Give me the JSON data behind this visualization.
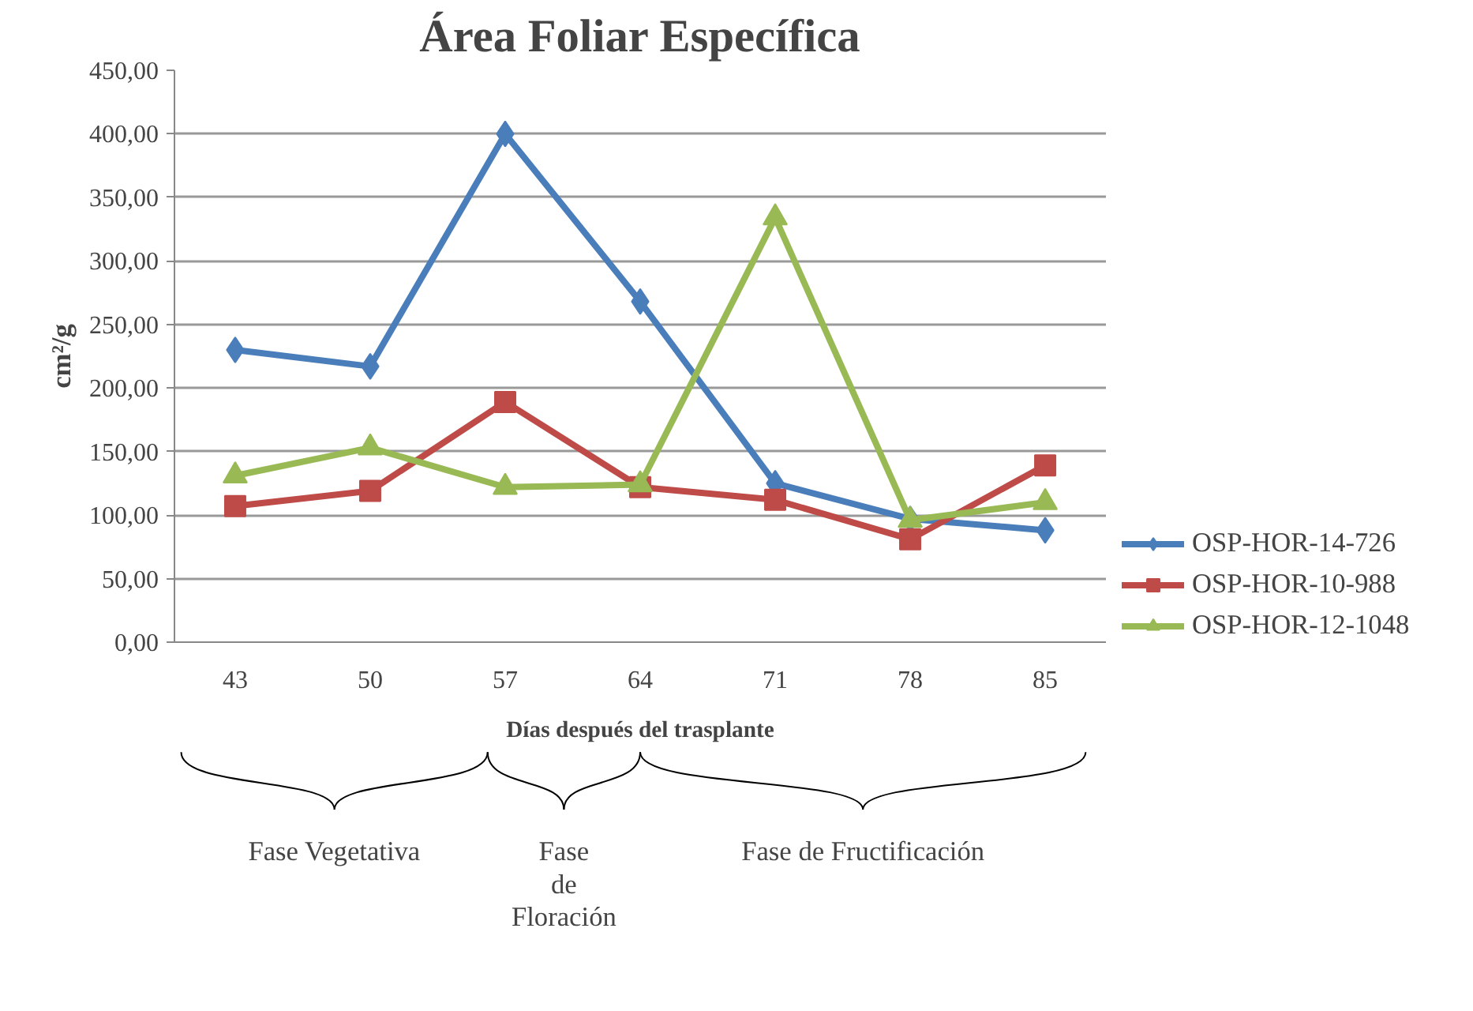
{
  "chart_data": {
    "type": "line",
    "title": "Área Foliar Específica",
    "xlabel": "Días después del trasplante",
    "ylabel": "cm²/g",
    "categories": [
      "43",
      "50",
      "57",
      "64",
      "71",
      "78",
      "85"
    ],
    "series": [
      {
        "name": "OSP-HOR-14-726",
        "color": "#4a7ebb",
        "marker": "diamond",
        "values": [
          230,
          217,
          400,
          268,
          125,
          97,
          88
        ]
      },
      {
        "name": "OSP-HOR-10-988",
        "color": "#be4b48",
        "marker": "square",
        "values": [
          107,
          119,
          189,
          122,
          112,
          81,
          139
        ]
      },
      {
        "name": "OSP-HOR-12-1048",
        "color": "#98b954",
        "marker": "triangle",
        "values": [
          131,
          153,
          122,
          124,
          334,
          96,
          110
        ]
      }
    ],
    "ylim": [
      0,
      450
    ],
    "yticks": [
      {
        "value": 0,
        "label": "0,00"
      },
      {
        "value": 50,
        "label": "50,00"
      },
      {
        "value": 100,
        "label": "100,00"
      },
      {
        "value": 150,
        "label": "150,00"
      },
      {
        "value": 200,
        "label": "200,00"
      },
      {
        "value": 250,
        "label": "250,00"
      },
      {
        "value": 300,
        "label": "300,00"
      },
      {
        "value": 350,
        "label": "350,00"
      },
      {
        "value": 400,
        "label": "400,00"
      },
      {
        "value": 450,
        "label": "450,00"
      }
    ],
    "grid": "y",
    "legend": "right",
    "line_style": "solid",
    "annotations": [
      "Fase Vegetativa",
      "Fase de Floración",
      "Fase de Fructificación"
    ]
  }
}
